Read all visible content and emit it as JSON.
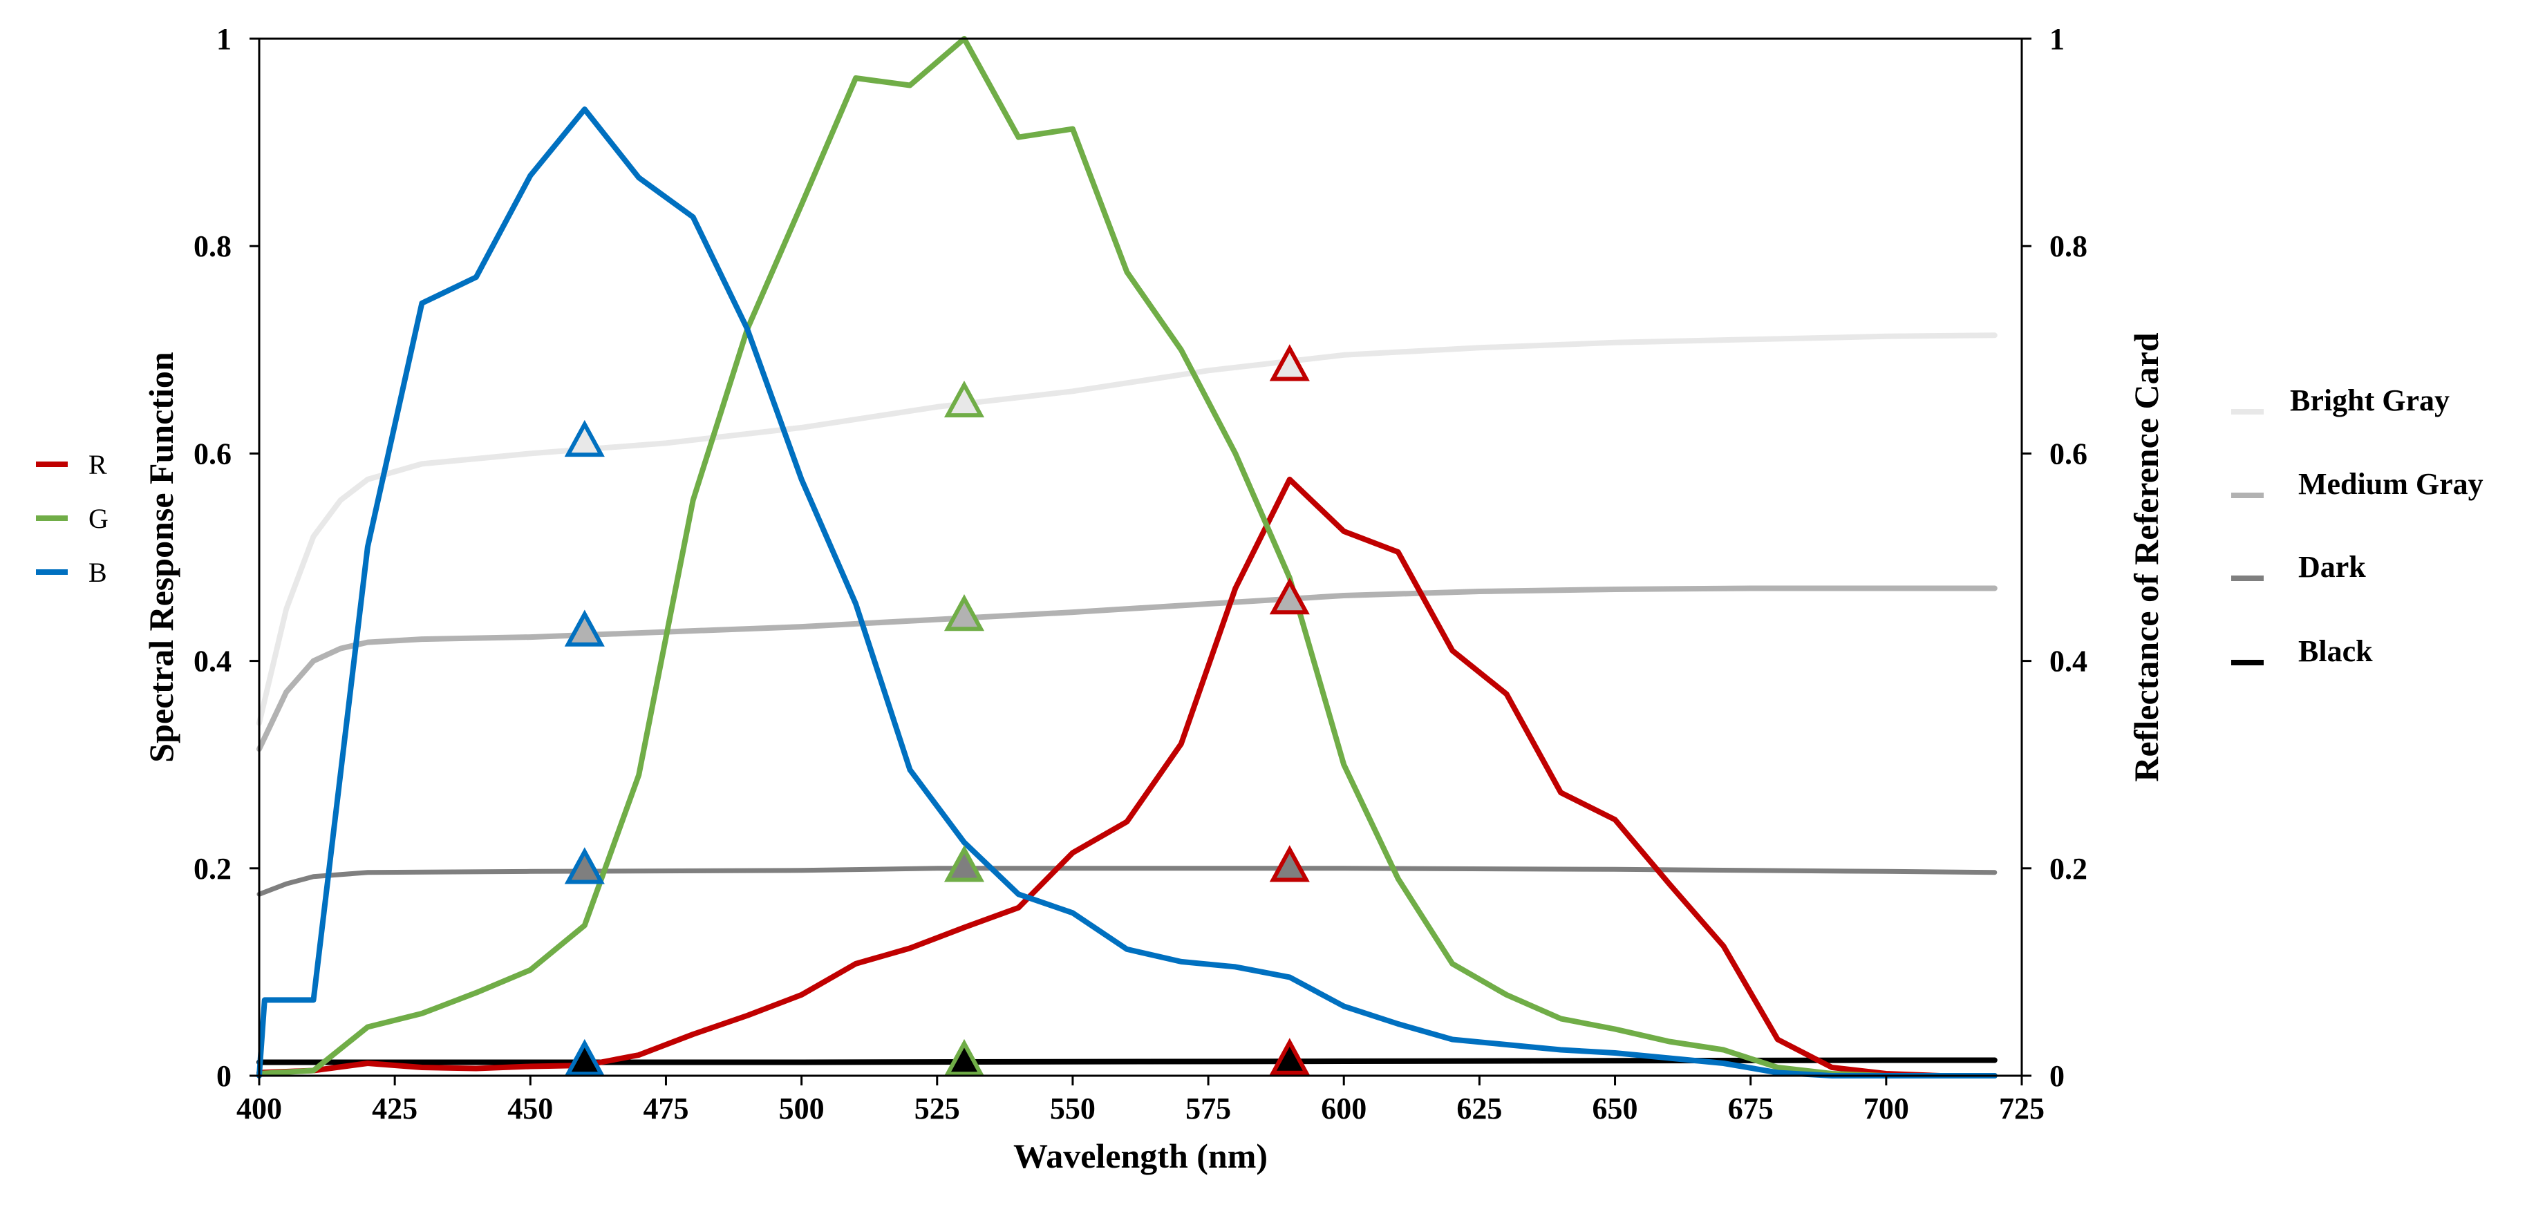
{
  "chart_data": {
    "type": "line",
    "xlabel": "Wavelength (nm)",
    "ylabel_left": "Spectral Response Function",
    "ylabel_right": "Reflectance of Reference Card",
    "xlim": [
      400,
      725
    ],
    "ylim_left": [
      0,
      1
    ],
    "ylim_right": [
      0,
      1
    ],
    "x_ticks": [
      400,
      425,
      450,
      475,
      500,
      525,
      550,
      575,
      600,
      625,
      650,
      675,
      700,
      725
    ],
    "x_tick_labels": [
      "400",
      "425",
      "450",
      "475",
      "500",
      "525",
      "550",
      "575",
      "600",
      "625",
      "650",
      "675",
      "700",
      "725"
    ],
    "y_ticks": [
      0,
      0.2,
      0.4,
      0.6,
      0.8,
      1
    ],
    "y_tick_labels": [
      "0",
      "0.2",
      "0.4",
      "0.6",
      "0.8",
      "1"
    ],
    "response_series": [
      {
        "name": "R",
        "color": "#c00000",
        "x": [
          400,
          410,
          420,
          430,
          440,
          450,
          460,
          470,
          480,
          490,
          500,
          510,
          520,
          530,
          540,
          550,
          560,
          570,
          580,
          590,
          600,
          610,
          620,
          630,
          640,
          650,
          660,
          670,
          680,
          690,
          700,
          710,
          720
        ],
        "y": [
          0.003,
          0.005,
          0.012,
          0.008,
          0.007,
          0.009,
          0.01,
          0.02,
          0.04,
          0.058,
          0.078,
          0.108,
          0.123,
          0.143,
          0.162,
          0.215,
          0.245,
          0.32,
          0.47,
          0.575,
          0.525,
          0.505,
          0.41,
          0.368,
          0.273,
          0.247,
          0.185,
          0.125,
          0.035,
          0.008,
          0.002,
          0.0,
          0.0
        ]
      },
      {
        "name": "G",
        "color": "#70ad47",
        "x": [
          400,
          410,
          420,
          430,
          440,
          450,
          460,
          470,
          480,
          490,
          500,
          510,
          520,
          530,
          540,
          550,
          560,
          570,
          580,
          590,
          600,
          610,
          620,
          630,
          640,
          650,
          660,
          670,
          680,
          690,
          700,
          710,
          720
        ],
        "y": [
          0.002,
          0.005,
          0.047,
          0.06,
          0.08,
          0.102,
          0.145,
          0.29,
          0.555,
          0.72,
          0.84,
          0.962,
          0.955,
          1.0,
          0.905,
          0.913,
          0.775,
          0.7,
          0.6,
          0.48,
          0.3,
          0.19,
          0.108,
          0.078,
          0.055,
          0.045,
          0.033,
          0.025,
          0.008,
          0.002,
          0.0,
          0.0,
          0.0
        ]
      },
      {
        "name": "B",
        "color": "#0070c0",
        "x": [
          400,
          401,
          410,
          420,
          430,
          440,
          450,
          460,
          470,
          480,
          490,
          500,
          510,
          520,
          530,
          540,
          550,
          560,
          570,
          580,
          590,
          600,
          610,
          620,
          630,
          640,
          650,
          660,
          670,
          680,
          690,
          700,
          710,
          720
        ],
        "y": [
          0.0,
          0.073,
          0.073,
          0.51,
          0.745,
          0.77,
          0.868,
          0.932,
          0.866,
          0.828,
          0.72,
          0.575,
          0.455,
          0.295,
          0.225,
          0.175,
          0.157,
          0.122,
          0.11,
          0.105,
          0.095,
          0.067,
          0.05,
          0.035,
          0.03,
          0.025,
          0.022,
          0.017,
          0.012,
          0.003,
          0.0,
          0.0,
          0.0,
          0.0
        ]
      }
    ],
    "reflectance_series": [
      {
        "name": "Bright Gray",
        "color": "#e8e8e8",
        "x": [
          400,
          405,
          410,
          415,
          420,
          430,
          450,
          475,
          500,
          525,
          550,
          575,
          600,
          625,
          650,
          675,
          700,
          720
        ],
        "y": [
          0.34,
          0.45,
          0.52,
          0.555,
          0.575,
          0.59,
          0.6,
          0.61,
          0.625,
          0.645,
          0.66,
          0.68,
          0.695,
          0.702,
          0.707,
          0.71,
          0.713,
          0.714
        ]
      },
      {
        "name": "Medium Gray",
        "color": "#b2b2b2",
        "x": [
          400,
          405,
          410,
          415,
          420,
          430,
          450,
          475,
          500,
          525,
          550,
          575,
          600,
          625,
          650,
          675,
          700,
          720
        ],
        "y": [
          0.315,
          0.37,
          0.4,
          0.412,
          0.418,
          0.421,
          0.423,
          0.428,
          0.433,
          0.44,
          0.447,
          0.455,
          0.463,
          0.467,
          0.469,
          0.47,
          0.47,
          0.47
        ]
      },
      {
        "name": "Dark",
        "color": "#7f7f7f",
        "x": [
          400,
          405,
          410,
          420,
          450,
          500,
          525,
          550,
          600,
          650,
          700,
          720
        ],
        "y": [
          0.175,
          0.185,
          0.192,
          0.196,
          0.197,
          0.198,
          0.2,
          0.2,
          0.2,
          0.199,
          0.197,
          0.196
        ]
      },
      {
        "name": "Black",
        "color": "#000000",
        "x": [
          400,
          500,
          600,
          700,
          720
        ],
        "y": [
          0.013,
          0.013,
          0.014,
          0.015,
          0.015
        ]
      }
    ],
    "markers": [
      {
        "wavelength": 460,
        "card": "Bright Gray",
        "value": 0.61,
        "color": "#0070c0"
      },
      {
        "wavelength": 460,
        "card": "Medium Gray",
        "value": 0.427,
        "color": "#0070c0"
      },
      {
        "wavelength": 460,
        "card": "Dark",
        "value": 0.198,
        "color": "#0070c0"
      },
      {
        "wavelength": 460,
        "card": "Black",
        "value": 0.013,
        "color": "#0070c0"
      },
      {
        "wavelength": 530,
        "card": "Bright Gray",
        "value": 0.648,
        "color": "#70ad47"
      },
      {
        "wavelength": 530,
        "card": "Medium Gray",
        "value": 0.442,
        "color": "#70ad47"
      },
      {
        "wavelength": 530,
        "card": "Dark",
        "value": 0.2,
        "color": "#70ad47"
      },
      {
        "wavelength": 530,
        "card": "Black",
        "value": 0.013,
        "color": "#70ad47"
      },
      {
        "wavelength": 590,
        "card": "Bright Gray",
        "value": 0.683,
        "color": "#c00000"
      },
      {
        "wavelength": 590,
        "card": "Medium Gray",
        "value": 0.458,
        "color": "#c00000"
      },
      {
        "wavelength": 590,
        "card": "Dark",
        "value": 0.2,
        "color": "#c00000"
      },
      {
        "wavelength": 590,
        "card": "Black",
        "value": 0.014,
        "color": "#c00000"
      }
    ],
    "legend_left": [
      "R",
      "G",
      "B"
    ],
    "legend_right": [
      "Bright Gray",
      "Medium Gray",
      "Dark",
      "Black"
    ],
    "legend_left_placement": "left-middle",
    "legend_right_placement": "right-middle",
    "grid": false
  }
}
